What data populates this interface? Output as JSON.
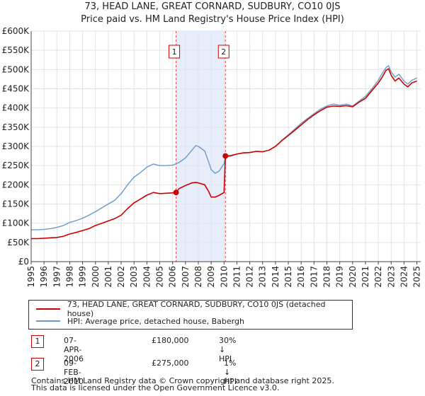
{
  "header": {
    "title_line1": "73, HEAD LANE, GREAT CORNARD, SUDBURY, CO10 0JS",
    "title_line2": "Price paid vs. HM Land Registry's House Price Index (HPI)"
  },
  "chart_data": {
    "type": "line",
    "title": "73, HEAD LANE, GREAT CORNARD, SUDBURY, CO10 0JS",
    "subtitle": "Price paid vs. HM Land Registry's House Price Index (HPI)",
    "xlabel": "",
    "ylabel": "",
    "xlim": [
      1995,
      2025.3
    ],
    "ylim": [
      0,
      600000
    ],
    "y_ticks": [
      0,
      50000,
      100000,
      150000,
      200000,
      250000,
      300000,
      350000,
      400000,
      450000,
      500000,
      550000,
      600000
    ],
    "y_tick_labels": [
      "£0",
      "£50K",
      "£100K",
      "£150K",
      "£200K",
      "£250K",
      "£300K",
      "£350K",
      "£400K",
      "£450K",
      "£500K",
      "£550K",
      "£600K"
    ],
    "x_ticks": [
      1995,
      1996,
      1997,
      1998,
      1999,
      2000,
      2001,
      2002,
      2003,
      2004,
      2005,
      2006,
      2007,
      2008,
      2009,
      2010,
      2011,
      2012,
      2013,
      2014,
      2015,
      2016,
      2017,
      2018,
      2019,
      2020,
      2021,
      2022,
      2023,
      2024,
      2025
    ],
    "x_tick_labels": [
      "1995",
      "1996",
      "1997",
      "1998",
      "1999",
      "2000",
      "2001",
      "2002",
      "2003",
      "2004",
      "2005",
      "2006",
      "2007",
      "2008",
      "2009",
      "2010",
      "2011",
      "2012",
      "2013",
      "2014",
      "2015",
      "2016",
      "2017",
      "2018",
      "2019",
      "2020",
      "2021",
      "2022",
      "2023",
      "2024",
      "2025"
    ],
    "grid": true,
    "shaded_period": [
      2006.27,
      2010.11
    ],
    "series": [
      {
        "name": "73, HEAD LANE, GREAT CORNARD, SUDBURY, CO10 0JS (detached house)",
        "color": "#cc0000",
        "x": [
          1995.0,
          1995.5,
          1996.0,
          1996.5,
          1997.0,
          1997.5,
          1998.0,
          1998.5,
          1999.0,
          1999.5,
          2000.0,
          2000.5,
          2001.0,
          2001.5,
          2002.0,
          2002.5,
          2003.0,
          2003.5,
          2004.0,
          2004.5,
          2005.0,
          2005.5,
          2006.0,
          2006.27,
          2006.5,
          2007.0,
          2007.5,
          2007.8,
          2008.0,
          2008.5,
          2008.8,
          2009.0,
          2009.3,
          2009.6,
          2010.0,
          2010.11,
          2010.5,
          2011.0,
          2011.5,
          2012.0,
          2012.5,
          2013.0,
          2013.5,
          2014.0,
          2014.5,
          2015.0,
          2015.5,
          2016.0,
          2016.5,
          2017.0,
          2017.5,
          2018.0,
          2018.5,
          2019.0,
          2019.5,
          2020.0,
          2020.5,
          2021.0,
          2021.5,
          2022.0,
          2022.3,
          2022.6,
          2022.8,
          2023.0,
          2023.3,
          2023.6,
          2024.0,
          2024.3,
          2024.6,
          2025.0
        ],
        "values": [
          60000,
          60000,
          61000,
          62000,
          63000,
          66000,
          72000,
          76000,
          81000,
          86000,
          94000,
          100000,
          106000,
          112000,
          121000,
          138000,
          153000,
          163000,
          173000,
          180000,
          177000,
          178000,
          179000,
          180000,
          190000,
          198000,
          205000,
          206000,
          205000,
          200000,
          183000,
          168000,
          168000,
          172000,
          180000,
          275000,
          276000,
          280000,
          283000,
          284000,
          287000,
          286000,
          290000,
          300000,
          315000,
          328000,
          342000,
          356000,
          370000,
          382000,
          393000,
          402000,
          405000,
          404000,
          406000,
          403000,
          415000,
          425000,
          445000,
          465000,
          480000,
          498000,
          502000,
          485000,
          470000,
          478000,
          462000,
          455000,
          465000,
          470000
        ]
      },
      {
        "name": "HPI: Average price, detached house, Babergh",
        "color": "#6b9acb",
        "x": [
          1995.0,
          1995.5,
          1996.0,
          1996.5,
          1997.0,
          1997.5,
          1998.0,
          1998.5,
          1999.0,
          1999.5,
          2000.0,
          2000.5,
          2001.0,
          2001.5,
          2002.0,
          2002.5,
          2003.0,
          2003.5,
          2004.0,
          2004.5,
          2005.0,
          2005.5,
          2006.0,
          2006.5,
          2007.0,
          2007.5,
          2007.8,
          2008.0,
          2008.5,
          2008.8,
          2009.0,
          2009.3,
          2009.6,
          2010.0,
          2010.11,
          2010.5,
          2011.0,
          2011.5,
          2012.0,
          2012.5,
          2013.0,
          2013.5,
          2014.0,
          2014.5,
          2015.0,
          2015.5,
          2016.0,
          2016.5,
          2017.0,
          2017.5,
          2018.0,
          2018.5,
          2019.0,
          2019.5,
          2020.0,
          2020.5,
          2021.0,
          2021.5,
          2022.0,
          2022.3,
          2022.6,
          2022.8,
          2023.0,
          2023.3,
          2023.6,
          2024.0,
          2024.3,
          2024.6,
          2025.0
        ],
        "values": [
          83000,
          83000,
          84000,
          86000,
          89000,
          94000,
          102000,
          107000,
          113000,
          121000,
          130000,
          140000,
          150000,
          160000,
          177000,
          200000,
          220000,
          232000,
          246000,
          254000,
          250000,
          250000,
          251000,
          258000,
          270000,
          290000,
          302000,
          300000,
          288000,
          260000,
          240000,
          230000,
          235000,
          255000,
          272000,
          274000,
          280000,
          283000,
          284000,
          287000,
          286000,
          290000,
          300000,
          316000,
          330000,
          345000,
          360000,
          373000,
          385000,
          397000,
          405000,
          410000,
          407000,
          410000,
          405000,
          418000,
          430000,
          450000,
          472000,
          490000,
          505000,
          510000,
          494000,
          480000,
          488000,
          470000,
          462000,
          472000,
          478000
        ]
      }
    ],
    "sales": [
      {
        "label": "1",
        "x": 2006.27,
        "value": 180000
      },
      {
        "label": "2",
        "x": 2010.11,
        "value": 275000
      }
    ]
  },
  "legend": {
    "property": "73, HEAD LANE, GREAT CORNARD, SUDBURY, CO10 0JS (detached house)",
    "hpi": "HPI: Average price, detached house, Babergh"
  },
  "transactions": [
    {
      "num": "1",
      "date": "07-APR-2006",
      "price": "£180,000",
      "hpi": "30% ↓ HPI"
    },
    {
      "num": "2",
      "date": "09-FEB-2010",
      "price": "£275,000",
      "hpi": "1% ↓ HPI"
    }
  ],
  "footer": {
    "line1": "Contains HM Land Registry data © Crown copyright and database right 2025.",
    "line2": "This data is licensed under the Open Government Licence v3.0."
  }
}
